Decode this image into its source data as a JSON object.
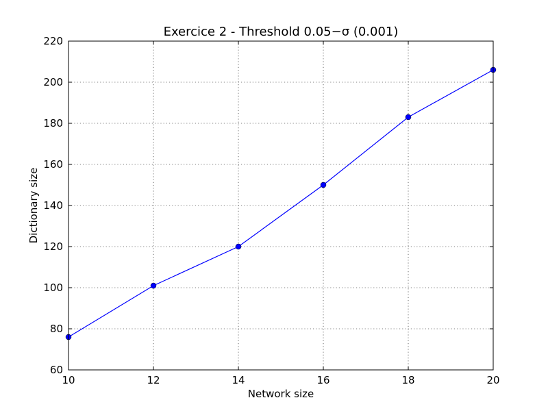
{
  "chart_data": {
    "type": "line",
    "title": "Exercice 2 - Threshold 0.05−σ (0.001)",
    "xlabel": "Network size",
    "ylabel": "Dictionary size",
    "x": [
      10,
      12,
      14,
      16,
      18,
      20
    ],
    "series": [
      {
        "values": [
          76,
          101,
          120,
          150,
          183,
          206
        ],
        "color": "#0000ff",
        "marker": "circle"
      }
    ],
    "xlim": [
      10,
      20
    ],
    "ylim": [
      60,
      220
    ],
    "xticks": [
      10,
      12,
      14,
      16,
      18,
      20
    ],
    "yticks": [
      60,
      80,
      100,
      120,
      140,
      160,
      180,
      200,
      220
    ],
    "grid": true
  }
}
